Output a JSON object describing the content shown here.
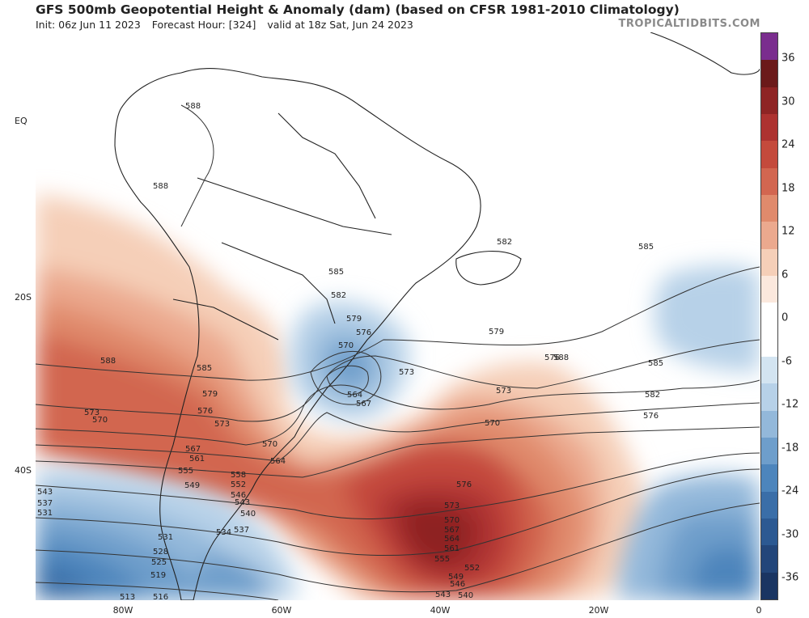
{
  "header": {
    "title": "GFS 500mb Geopotential Height & Anomaly (dam) (based on CFSR 1981-2010 Climatology)",
    "init": "Init: 06z Jun 11 2023",
    "forecast_hour": "Forecast Hour: [324]",
    "valid": "valid at 18z Sat, Jun 24 2023",
    "brand": "TROPICALTIDBITS.COM"
  },
  "axes": {
    "lat_labels": [
      "EQ",
      "20S",
      "40S"
    ],
    "lon_labels": [
      "80W",
      "60W",
      "40W",
      "20W",
      "0"
    ]
  },
  "colorbar": {
    "ticks": [
      "36",
      "30",
      "24",
      "18",
      "12",
      "6",
      "0",
      "-6",
      "-12",
      "-18",
      "-24",
      "-30",
      "-36"
    ],
    "colors": [
      "#7a2d8e",
      "#6b1a1a",
      "#8e2424",
      "#ad3230",
      "#c44a3c",
      "#d26650",
      "#e08a6c",
      "#eba98e",
      "#f5cfb8",
      "#fbe8dd",
      "#ffffff",
      "#ffffff",
      "#d3e4f1",
      "#b7d1e8",
      "#93b8da",
      "#6e9ecb",
      "#4d85bc",
      "#3a6ea8",
      "#2c5992",
      "#23467a",
      "#1a3562"
    ]
  },
  "contour_labels": [
    {
      "value": "588"
    },
    {
      "value": "588"
    },
    {
      "value": "588"
    },
    {
      "value": "585"
    },
    {
      "value": "585"
    },
    {
      "value": "582"
    },
    {
      "value": "579"
    },
    {
      "value": "576"
    },
    {
      "value": "570"
    },
    {
      "value": "573"
    },
    {
      "value": "564"
    },
    {
      "value": "567"
    },
    {
      "value": "585"
    },
    {
      "value": "582"
    },
    {
      "value": "579"
    },
    {
      "value": "576"
    },
    {
      "value": "573"
    },
    {
      "value": "570"
    },
    {
      "value": "588"
    },
    {
      "value": "585"
    },
    {
      "value": "582"
    },
    {
      "value": "576"
    },
    {
      "value": "579"
    },
    {
      "value": "576"
    },
    {
      "value": "573"
    },
    {
      "value": "570"
    },
    {
      "value": "564"
    },
    {
      "value": "567"
    },
    {
      "value": "561"
    },
    {
      "value": "555"
    },
    {
      "value": "558"
    },
    {
      "value": "549"
    },
    {
      "value": "552"
    },
    {
      "value": "546"
    },
    {
      "value": "543"
    },
    {
      "value": "540"
    },
    {
      "value": "537"
    },
    {
      "value": "534"
    },
    {
      "value": "531"
    },
    {
      "value": "528"
    },
    {
      "value": "525"
    },
    {
      "value": "519"
    },
    {
      "value": "516"
    },
    {
      "value": "513"
    },
    {
      "value": "543"
    },
    {
      "value": "537"
    },
    {
      "value": "531"
    },
    {
      "value": "573"
    },
    {
      "value": "570"
    },
    {
      "value": "576"
    },
    {
      "value": "573"
    },
    {
      "value": "570"
    },
    {
      "value": "567"
    },
    {
      "value": "564"
    },
    {
      "value": "561"
    },
    {
      "value": "555"
    },
    {
      "value": "552"
    },
    {
      "value": "549"
    },
    {
      "value": "546"
    },
    {
      "value": "543"
    },
    {
      "value": "540"
    }
  ]
}
